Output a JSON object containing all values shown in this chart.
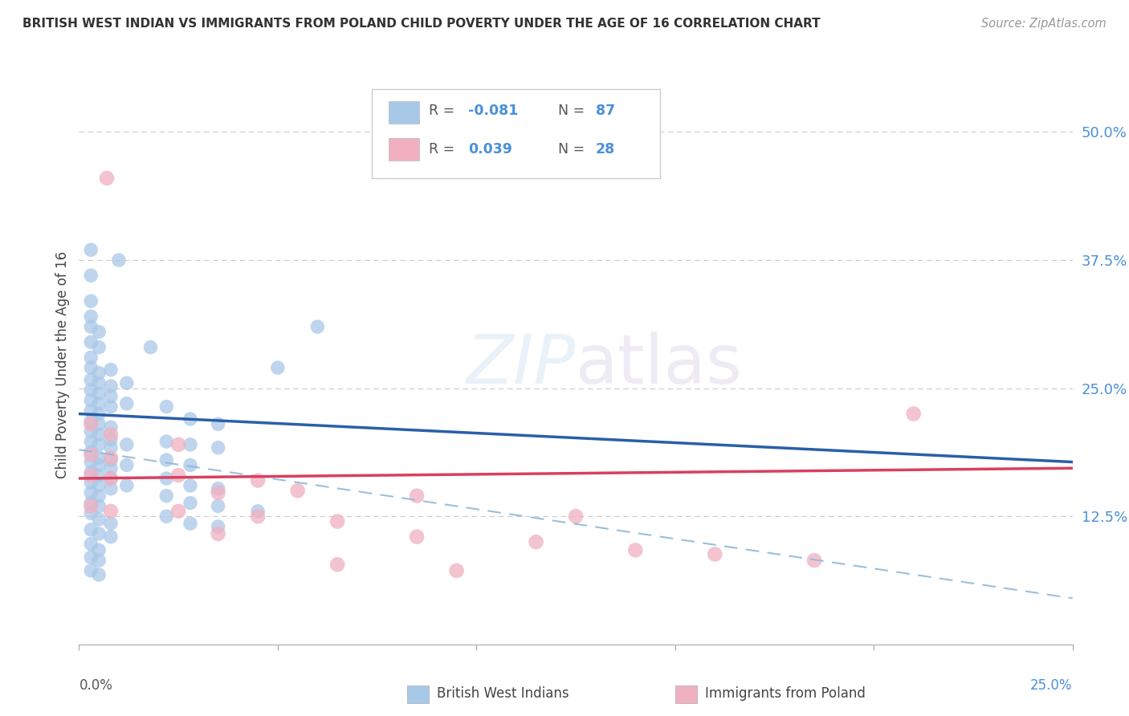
{
  "title": "BRITISH WEST INDIAN VS IMMIGRANTS FROM POLAND CHILD POVERTY UNDER THE AGE OF 16 CORRELATION CHART",
  "source": "Source: ZipAtlas.com",
  "ylabel": "Child Poverty Under the Age of 16",
  "ytick_labels": [
    "50.0%",
    "37.5%",
    "25.0%",
    "12.5%"
  ],
  "ytick_values": [
    0.5,
    0.375,
    0.25,
    0.125
  ],
  "xlim": [
    0.0,
    0.25
  ],
  "ylim": [
    0.0,
    0.545
  ],
  "color_blue": "#a8c8e8",
  "color_blue_line": "#2a5fa8",
  "color_pink": "#f0b0c0",
  "color_pink_line": "#d84060",
  "color_dashed": "#90b8d8",
  "blue_dots": [
    [
      0.003,
      0.385
    ],
    [
      0.01,
      0.375
    ],
    [
      0.003,
      0.36
    ],
    [
      0.003,
      0.335
    ],
    [
      0.003,
      0.32
    ],
    [
      0.003,
      0.31
    ],
    [
      0.005,
      0.305
    ],
    [
      0.003,
      0.295
    ],
    [
      0.005,
      0.29
    ],
    [
      0.003,
      0.28
    ],
    [
      0.018,
      0.29
    ],
    [
      0.003,
      0.27
    ],
    [
      0.005,
      0.265
    ],
    [
      0.008,
      0.268
    ],
    [
      0.003,
      0.258
    ],
    [
      0.005,
      0.255
    ],
    [
      0.008,
      0.252
    ],
    [
      0.012,
      0.255
    ],
    [
      0.003,
      0.248
    ],
    [
      0.005,
      0.245
    ],
    [
      0.008,
      0.242
    ],
    [
      0.003,
      0.238
    ],
    [
      0.005,
      0.235
    ],
    [
      0.008,
      0.232
    ],
    [
      0.012,
      0.235
    ],
    [
      0.003,
      0.228
    ],
    [
      0.005,
      0.225
    ],
    [
      0.003,
      0.218
    ],
    [
      0.005,
      0.215
    ],
    [
      0.008,
      0.212
    ],
    [
      0.003,
      0.208
    ],
    [
      0.005,
      0.205
    ],
    [
      0.008,
      0.2
    ],
    [
      0.003,
      0.198
    ],
    [
      0.005,
      0.195
    ],
    [
      0.008,
      0.192
    ],
    [
      0.012,
      0.195
    ],
    [
      0.003,
      0.188
    ],
    [
      0.005,
      0.182
    ],
    [
      0.008,
      0.18
    ],
    [
      0.003,
      0.178
    ],
    [
      0.005,
      0.175
    ],
    [
      0.008,
      0.172
    ],
    [
      0.012,
      0.175
    ],
    [
      0.003,
      0.168
    ],
    [
      0.005,
      0.165
    ],
    [
      0.008,
      0.162
    ],
    [
      0.003,
      0.158
    ],
    [
      0.005,
      0.155
    ],
    [
      0.008,
      0.152
    ],
    [
      0.012,
      0.155
    ],
    [
      0.003,
      0.148
    ],
    [
      0.005,
      0.145
    ],
    [
      0.003,
      0.138
    ],
    [
      0.005,
      0.135
    ],
    [
      0.003,
      0.128
    ],
    [
      0.005,
      0.122
    ],
    [
      0.008,
      0.118
    ],
    [
      0.003,
      0.112
    ],
    [
      0.005,
      0.108
    ],
    [
      0.008,
      0.105
    ],
    [
      0.003,
      0.098
    ],
    [
      0.005,
      0.092
    ],
    [
      0.003,
      0.085
    ],
    [
      0.005,
      0.082
    ],
    [
      0.003,
      0.072
    ],
    [
      0.005,
      0.068
    ],
    [
      0.05,
      0.27
    ],
    [
      0.06,
      0.31
    ],
    [
      0.022,
      0.232
    ],
    [
      0.028,
      0.22
    ],
    [
      0.035,
      0.215
    ],
    [
      0.022,
      0.198
    ],
    [
      0.028,
      0.195
    ],
    [
      0.035,
      0.192
    ],
    [
      0.022,
      0.18
    ],
    [
      0.028,
      0.175
    ],
    [
      0.022,
      0.162
    ],
    [
      0.028,
      0.155
    ],
    [
      0.035,
      0.152
    ],
    [
      0.022,
      0.145
    ],
    [
      0.028,
      0.138
    ],
    [
      0.035,
      0.135
    ],
    [
      0.045,
      0.13
    ],
    [
      0.022,
      0.125
    ],
    [
      0.028,
      0.118
    ],
    [
      0.035,
      0.115
    ]
  ],
  "pink_dots": [
    [
      0.007,
      0.455
    ],
    [
      0.003,
      0.215
    ],
    [
      0.008,
      0.205
    ],
    [
      0.003,
      0.185
    ],
    [
      0.008,
      0.182
    ],
    [
      0.025,
      0.195
    ],
    [
      0.003,
      0.165
    ],
    [
      0.008,
      0.162
    ],
    [
      0.025,
      0.165
    ],
    [
      0.045,
      0.16
    ],
    [
      0.035,
      0.148
    ],
    [
      0.055,
      0.15
    ],
    [
      0.085,
      0.145
    ],
    [
      0.003,
      0.135
    ],
    [
      0.008,
      0.13
    ],
    [
      0.025,
      0.13
    ],
    [
      0.045,
      0.125
    ],
    [
      0.065,
      0.12
    ],
    [
      0.035,
      0.108
    ],
    [
      0.085,
      0.105
    ],
    [
      0.115,
      0.1
    ],
    [
      0.14,
      0.092
    ],
    [
      0.16,
      0.088
    ],
    [
      0.185,
      0.082
    ],
    [
      0.21,
      0.225
    ],
    [
      0.125,
      0.125
    ],
    [
      0.065,
      0.078
    ],
    [
      0.095,
      0.072
    ]
  ],
  "blue_line_x": [
    0.0,
    0.25
  ],
  "blue_line_y": [
    0.225,
    0.178
  ],
  "pink_line_x": [
    0.0,
    0.25
  ],
  "pink_line_y": [
    0.162,
    0.172
  ],
  "dashed_line_x": [
    0.0,
    0.25
  ],
  "dashed_line_y": [
    0.19,
    0.045
  ],
  "background_color": "#ffffff",
  "grid_color": "#cccccc"
}
